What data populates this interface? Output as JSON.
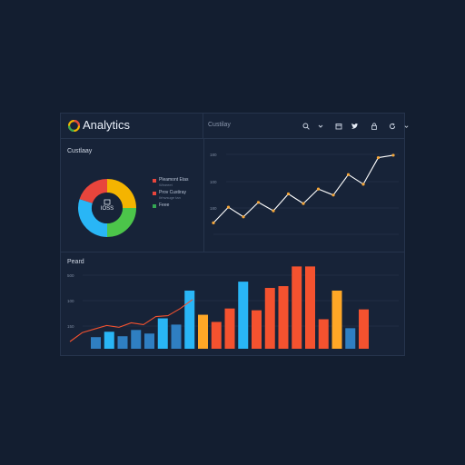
{
  "header": {
    "title": "Analytics",
    "section_label": "Custilay",
    "tools": [
      {
        "name": "search-icon",
        "glyph": "⌕"
      },
      {
        "name": "dropdown-chevron-icon",
        "glyph": "⌄"
      },
      {
        "name": "calendar-icon",
        "glyph": "▯"
      },
      {
        "name": "twitter-icon",
        "glyph": "🐦"
      },
      {
        "name": "lock-icon",
        "glyph": "▢"
      },
      {
        "name": "refresh-icon",
        "glyph": "↻"
      },
      {
        "name": "menu-chevron-icon",
        "glyph": "⌄"
      }
    ]
  },
  "donut_panel": {
    "label": "Custlaay",
    "center_text": "IOSS",
    "legend": [
      {
        "label": "Pleamont Etas",
        "sub": "Wineeet",
        "color": "#e8453c"
      },
      {
        "label": "Prov Custiray",
        "sub": "Ilrhwsuge tan",
        "color": "#e8453c"
      },
      {
        "label": "Feee",
        "sub": "",
        "color": "#34a853"
      }
    ]
  },
  "bar_panel": {
    "label": "Peard"
  },
  "colors": {
    "background": "#131e30",
    "panel": "#172338",
    "accent_orange": "#f4a63a",
    "red": "#f4522f",
    "cyan": "#29b6f6",
    "steel_blue": "#2f7fc2",
    "amber": "#ffa726",
    "green": "#4cc54a"
  },
  "chart_data": [
    {
      "type": "pie",
      "values": [
        25,
        25,
        30,
        20
      ],
      "colors": [
        "#f4b400",
        "#4cc54a",
        "#29b6f6",
        "#e8453c"
      ],
      "center_text": "IOSS"
    },
    {
      "type": "line",
      "x": [
        1,
        2,
        3,
        4,
        5,
        6,
        7,
        8,
        9,
        10,
        11,
        12,
        13
      ],
      "y": [
        20,
        33,
        25,
        37,
        30,
        44,
        36,
        48,
        43,
        60,
        52,
        74,
        76
      ],
      "yticks": [
        "180",
        "100",
        "180"
      ],
      "ylim": [
        0,
        100
      ]
    },
    {
      "type": "bar",
      "values": [
        13,
        19,
        14,
        21,
        17,
        34,
        27,
        65,
        38,
        30,
        45,
        75,
        43,
        68,
        70,
        92,
        92,
        33,
        65,
        23,
        44
      ],
      "colors": [
        "#2f7fc2",
        "#29b6f6",
        "#2f7fc2",
        "#2f7fc2",
        "#2f7fc2",
        "#29b6f6",
        "#2f7fc2",
        "#29b6f6",
        "#ffa726",
        "#f4522f",
        "#f4522f",
        "#29b6f6",
        "#f4522f",
        "#f4522f",
        "#f4522f",
        "#f4522f",
        "#f4522f",
        "#f4522f",
        "#ffa726",
        "#2f7fc2",
        "#f4522f"
      ],
      "trend": [
        8,
        18,
        22,
        26,
        24,
        29,
        27,
        36,
        37,
        45,
        55
      ],
      "yticks": [
        "500",
        "100",
        "150"
      ],
      "ylim": [
        0,
        100
      ]
    }
  ]
}
